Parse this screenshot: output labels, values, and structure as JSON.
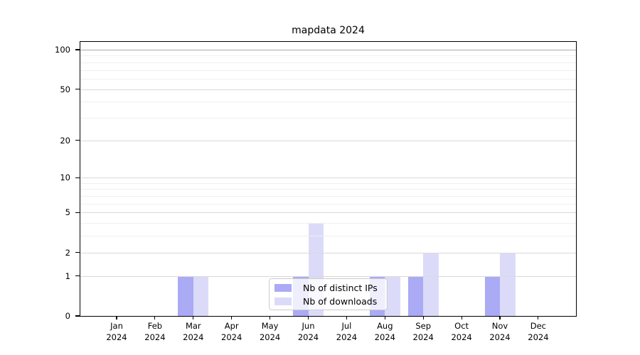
{
  "chart_data": {
    "type": "bar",
    "title": "mapdata 2024",
    "categories": [
      "Jan 2024",
      "Feb 2024",
      "Mar 2024",
      "Apr 2024",
      "May 2024",
      "Jun 2024",
      "Jul 2024",
      "Aug 2024",
      "Sep 2024",
      "Oct 2024",
      "Nov 2024",
      "Dec 2024"
    ],
    "series": [
      {
        "name": "Nb of distinct IPs",
        "color": "#aaaaf5",
        "values": [
          0,
          0,
          1,
          0,
          0,
          1,
          0,
          1,
          1,
          0,
          1,
          0
        ]
      },
      {
        "name": "Nb of downloads",
        "color": "#dbdbf9",
        "values": [
          0,
          0,
          1,
          0,
          0,
          4,
          0,
          1,
          2,
          0,
          2,
          0
        ]
      }
    ],
    "xlabel": "",
    "ylabel": "",
    "y_axis": {
      "scale": "log1p",
      "ticks": [
        0,
        1,
        2,
        5,
        10,
        20,
        50,
        100
      ],
      "minor_gridlines": [
        3,
        4,
        6,
        7,
        8,
        9,
        30,
        40,
        60,
        70,
        80,
        90
      ],
      "ylim": [
        0,
        115
      ]
    },
    "legend": {
      "entries": [
        "Nb of distinct IPs",
        "Nb of downloads"
      ],
      "position": "lower center"
    },
    "grid": true
  },
  "colors": {
    "distinct_ips_bar": "#aaaaf5",
    "downloads_bar": "#dbdbf9",
    "gridline_major": "#d9d9d9",
    "gridline_minor": "#efefef",
    "gridline_100": "#ababab",
    "axis_frame": "#000000",
    "legend_border": "#cccccc"
  }
}
